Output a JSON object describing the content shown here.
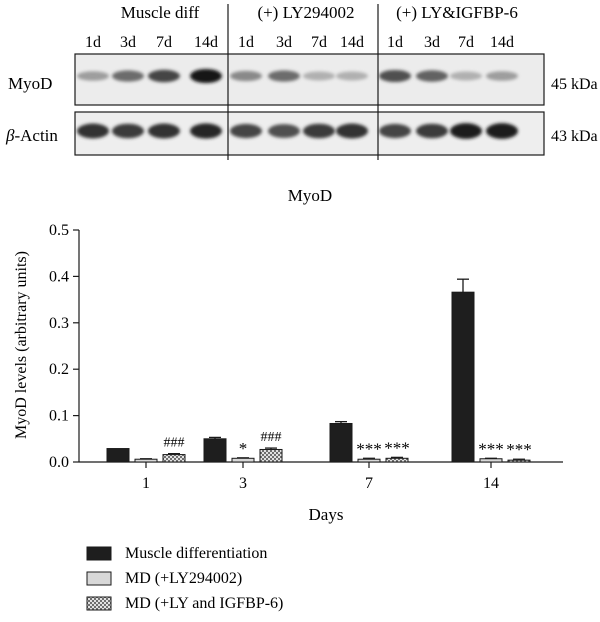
{
  "blot": {
    "group_labels": [
      "Muscle diff",
      "(+) LY294002",
      "(+) LY&IGFBP-6"
    ],
    "lane_labels": [
      "1d",
      "3d",
      "7d",
      "14d",
      "1d",
      "3d",
      "7d",
      "14d",
      "1d",
      "3d",
      "7d",
      "14d"
    ],
    "rows": [
      {
        "label_prefix": "",
        "label_main": "MyoD",
        "size": "45 kDa",
        "intensities": [
          0.3,
          0.55,
          0.75,
          1.0,
          0.4,
          0.55,
          0.2,
          0.2,
          0.7,
          0.6,
          0.2,
          0.3
        ]
      },
      {
        "label_prefix": "β",
        "label_main": "-Actin",
        "size": "43 kDa",
        "intensities": [
          0.85,
          0.8,
          0.85,
          0.9,
          0.75,
          0.7,
          0.8,
          0.85,
          0.75,
          0.8,
          0.95,
          0.95
        ]
      }
    ]
  },
  "chart_data": {
    "type": "bar",
    "title": "MyoD",
    "xlabel": "Days",
    "ylabel": "MyoD levels (arbitrary units)",
    "ylim": [
      0,
      0.5
    ],
    "yticks": [
      "0.0",
      "0.1",
      "0.2",
      "0.3",
      "0.4",
      "0.5"
    ],
    "ytick_values": [
      0,
      0.1,
      0.2,
      0.3,
      0.4,
      0.5
    ],
    "categories": [
      "1",
      "3",
      "7",
      "14"
    ],
    "series": [
      {
        "name": "Muscle differentiation",
        "values": [
          0.029,
          0.05,
          0.083,
          0.366
        ],
        "errors": [
          0.0,
          0.003,
          0.004,
          0.028
        ],
        "fill": "#1e1e1e"
      },
      {
        "name": "MD (+LY294002)",
        "values": [
          0.006,
          0.008,
          0.006,
          0.007
        ],
        "errors": [
          0.001,
          0.001,
          0.002,
          0.001
        ],
        "fill": "#d8d8d8"
      },
      {
        "name": "MD (+LY and IGFBP-6)",
        "values": [
          0.016,
          0.027,
          0.008,
          0.004
        ],
        "errors": [
          0.002,
          0.003,
          0.002,
          0.002
        ],
        "fill": "#9a9a9a"
      }
    ],
    "annotations": [
      {
        "category": 0,
        "series": 2,
        "text": "###"
      },
      {
        "category": 1,
        "series": 1,
        "text": "*"
      },
      {
        "category": 1,
        "series": 2,
        "text": "###"
      },
      {
        "category": 2,
        "series": 1,
        "text": "***"
      },
      {
        "category": 2,
        "series": 2,
        "text": "***"
      },
      {
        "category": 3,
        "series": 1,
        "text": "***"
      },
      {
        "category": 3,
        "series": 2,
        "text": "***"
      }
    ],
    "legend": {
      "position": "bottom-left",
      "pattern_series": 2
    }
  }
}
